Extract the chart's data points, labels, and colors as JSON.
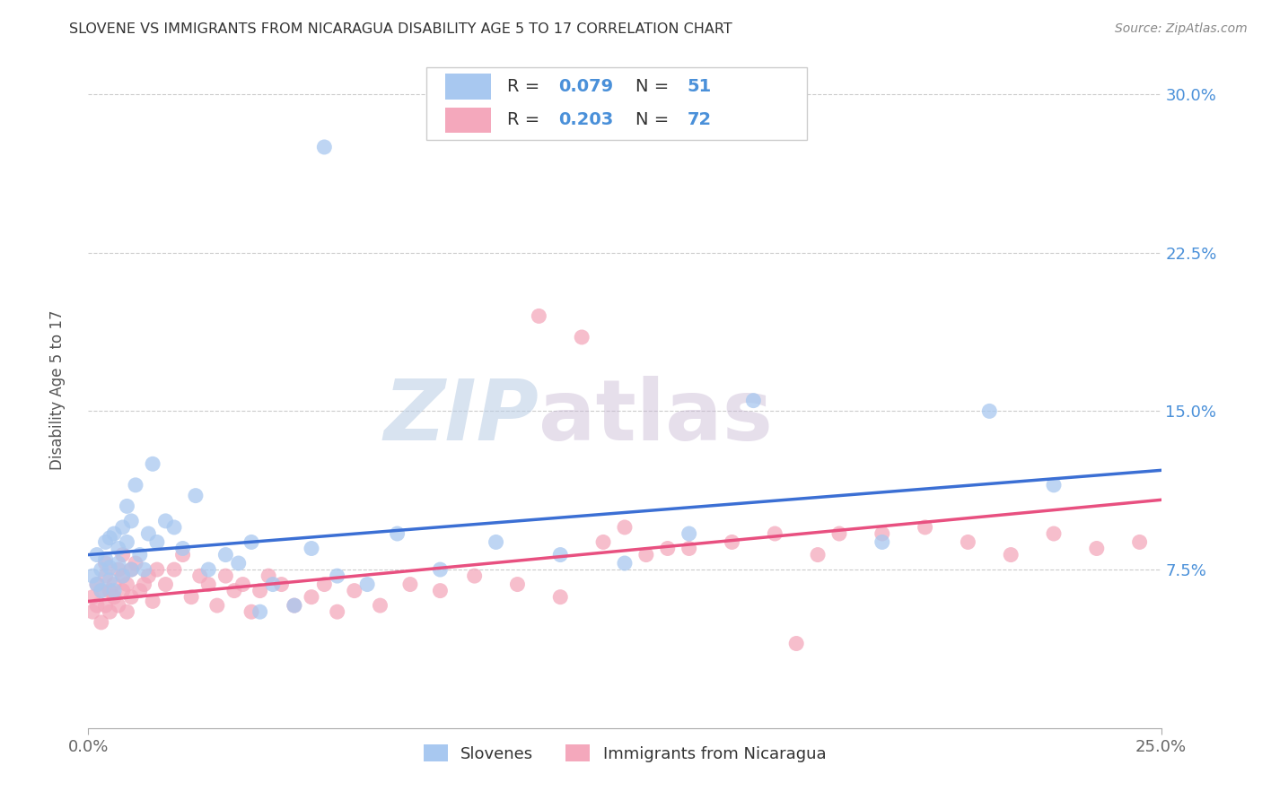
{
  "title": "SLOVENE VS IMMIGRANTS FROM NICARAGUA DISABILITY AGE 5 TO 17 CORRELATION CHART",
  "source": "Source: ZipAtlas.com",
  "ylabel": "Disability Age 5 to 17",
  "yticks": [
    "7.5%",
    "15.0%",
    "22.5%",
    "30.0%"
  ],
  "ytick_vals": [
    0.075,
    0.15,
    0.225,
    0.3
  ],
  "xmin": 0.0,
  "xmax": 0.25,
  "ymin": 0.0,
  "ymax": 0.32,
  "slovene_color": "#a8c8f0",
  "nicaragua_color": "#f4a8bc",
  "slovene_line_color": "#3b6fd4",
  "nicaragua_line_color": "#e85080",
  "legend_label_slovene": "Slovenes",
  "legend_label_nicaragua": "Immigrants from Nicaragua",
  "R_slovene": 0.079,
  "N_slovene": 51,
  "R_nicaragua": 0.203,
  "N_nicaragua": 72,
  "watermark_zip": "ZIP",
  "watermark_atlas": "atlas",
  "background_color": "#ffffff",
  "grid_color": "#cccccc",
  "title_color": "#333333",
  "blue_text": "#4a90d9",
  "slovene_x": [
    0.001,
    0.002,
    0.002,
    0.003,
    0.003,
    0.004,
    0.004,
    0.005,
    0.005,
    0.005,
    0.006,
    0.006,
    0.007,
    0.007,
    0.008,
    0.008,
    0.009,
    0.009,
    0.01,
    0.01,
    0.011,
    0.012,
    0.013,
    0.014,
    0.015,
    0.016,
    0.018,
    0.02,
    0.022,
    0.025,
    0.028,
    0.032,
    0.035,
    0.038,
    0.04,
    0.043,
    0.048,
    0.052,
    0.058,
    0.065,
    0.072,
    0.082,
    0.095,
    0.11,
    0.125,
    0.14,
    0.155,
    0.185,
    0.21,
    0.225,
    0.055
  ],
  "slovene_y": [
    0.072,
    0.068,
    0.082,
    0.075,
    0.065,
    0.08,
    0.088,
    0.07,
    0.09,
    0.076,
    0.065,
    0.092,
    0.085,
    0.078,
    0.095,
    0.072,
    0.105,
    0.088,
    0.098,
    0.075,
    0.115,
    0.082,
    0.075,
    0.092,
    0.125,
    0.088,
    0.098,
    0.095,
    0.085,
    0.11,
    0.075,
    0.082,
    0.078,
    0.088,
    0.055,
    0.068,
    0.058,
    0.085,
    0.072,
    0.068,
    0.092,
    0.075,
    0.088,
    0.082,
    0.078,
    0.092,
    0.155,
    0.088,
    0.15,
    0.115,
    0.275
  ],
  "nicaragua_x": [
    0.001,
    0.001,
    0.002,
    0.002,
    0.003,
    0.003,
    0.004,
    0.004,
    0.004,
    0.005,
    0.005,
    0.006,
    0.006,
    0.007,
    0.007,
    0.008,
    0.008,
    0.008,
    0.009,
    0.009,
    0.01,
    0.01,
    0.011,
    0.012,
    0.013,
    0.014,
    0.015,
    0.016,
    0.018,
    0.02,
    0.022,
    0.024,
    0.026,
    0.028,
    0.03,
    0.032,
    0.034,
    0.036,
    0.038,
    0.04,
    0.042,
    0.045,
    0.048,
    0.052,
    0.055,
    0.058,
    0.062,
    0.068,
    0.075,
    0.082,
    0.09,
    0.1,
    0.11,
    0.12,
    0.13,
    0.14,
    0.15,
    0.16,
    0.17,
    0.185,
    0.195,
    0.205,
    0.215,
    0.225,
    0.235,
    0.245,
    0.105,
    0.115,
    0.125,
    0.135,
    0.165,
    0.175
  ],
  "nicaragua_y": [
    0.062,
    0.055,
    0.068,
    0.058,
    0.05,
    0.065,
    0.072,
    0.058,
    0.078,
    0.065,
    0.055,
    0.068,
    0.062,
    0.075,
    0.058,
    0.082,
    0.065,
    0.072,
    0.068,
    0.055,
    0.075,
    0.062,
    0.078,
    0.065,
    0.068,
    0.072,
    0.06,
    0.075,
    0.068,
    0.075,
    0.082,
    0.062,
    0.072,
    0.068,
    0.058,
    0.072,
    0.065,
    0.068,
    0.055,
    0.065,
    0.072,
    0.068,
    0.058,
    0.062,
    0.068,
    0.055,
    0.065,
    0.058,
    0.068,
    0.065,
    0.072,
    0.068,
    0.062,
    0.088,
    0.082,
    0.085,
    0.088,
    0.092,
    0.082,
    0.092,
    0.095,
    0.088,
    0.082,
    0.092,
    0.085,
    0.088,
    0.195,
    0.185,
    0.095,
    0.085,
    0.04,
    0.092
  ]
}
